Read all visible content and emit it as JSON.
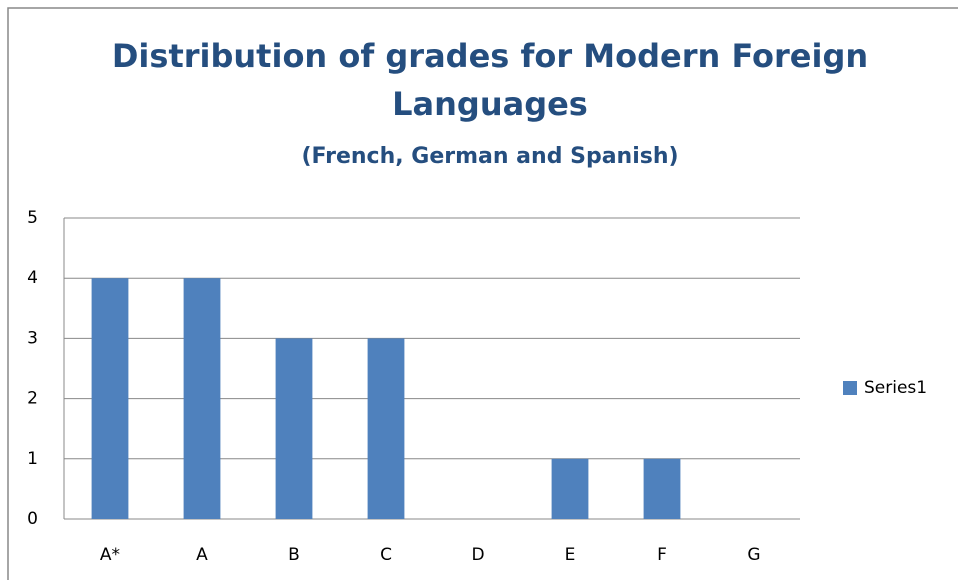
{
  "chart_data": {
    "type": "bar",
    "title": "Distribution of grades for Modern Foreign Languages",
    "subtitle": "(French, German and Spanish)",
    "categories": [
      "A*",
      "A",
      "B",
      "C",
      "D",
      "E",
      "F",
      "G"
    ],
    "series": [
      {
        "name": "Series1",
        "color": "#4f81bd",
        "values": [
          4,
          4,
          3,
          3,
          0,
          1,
          1,
          0
        ]
      }
    ],
    "ylim": [
      0,
      5
    ],
    "yticks": [
      0,
      1,
      2,
      3,
      4,
      5
    ],
    "grid": true,
    "legend": "right"
  }
}
